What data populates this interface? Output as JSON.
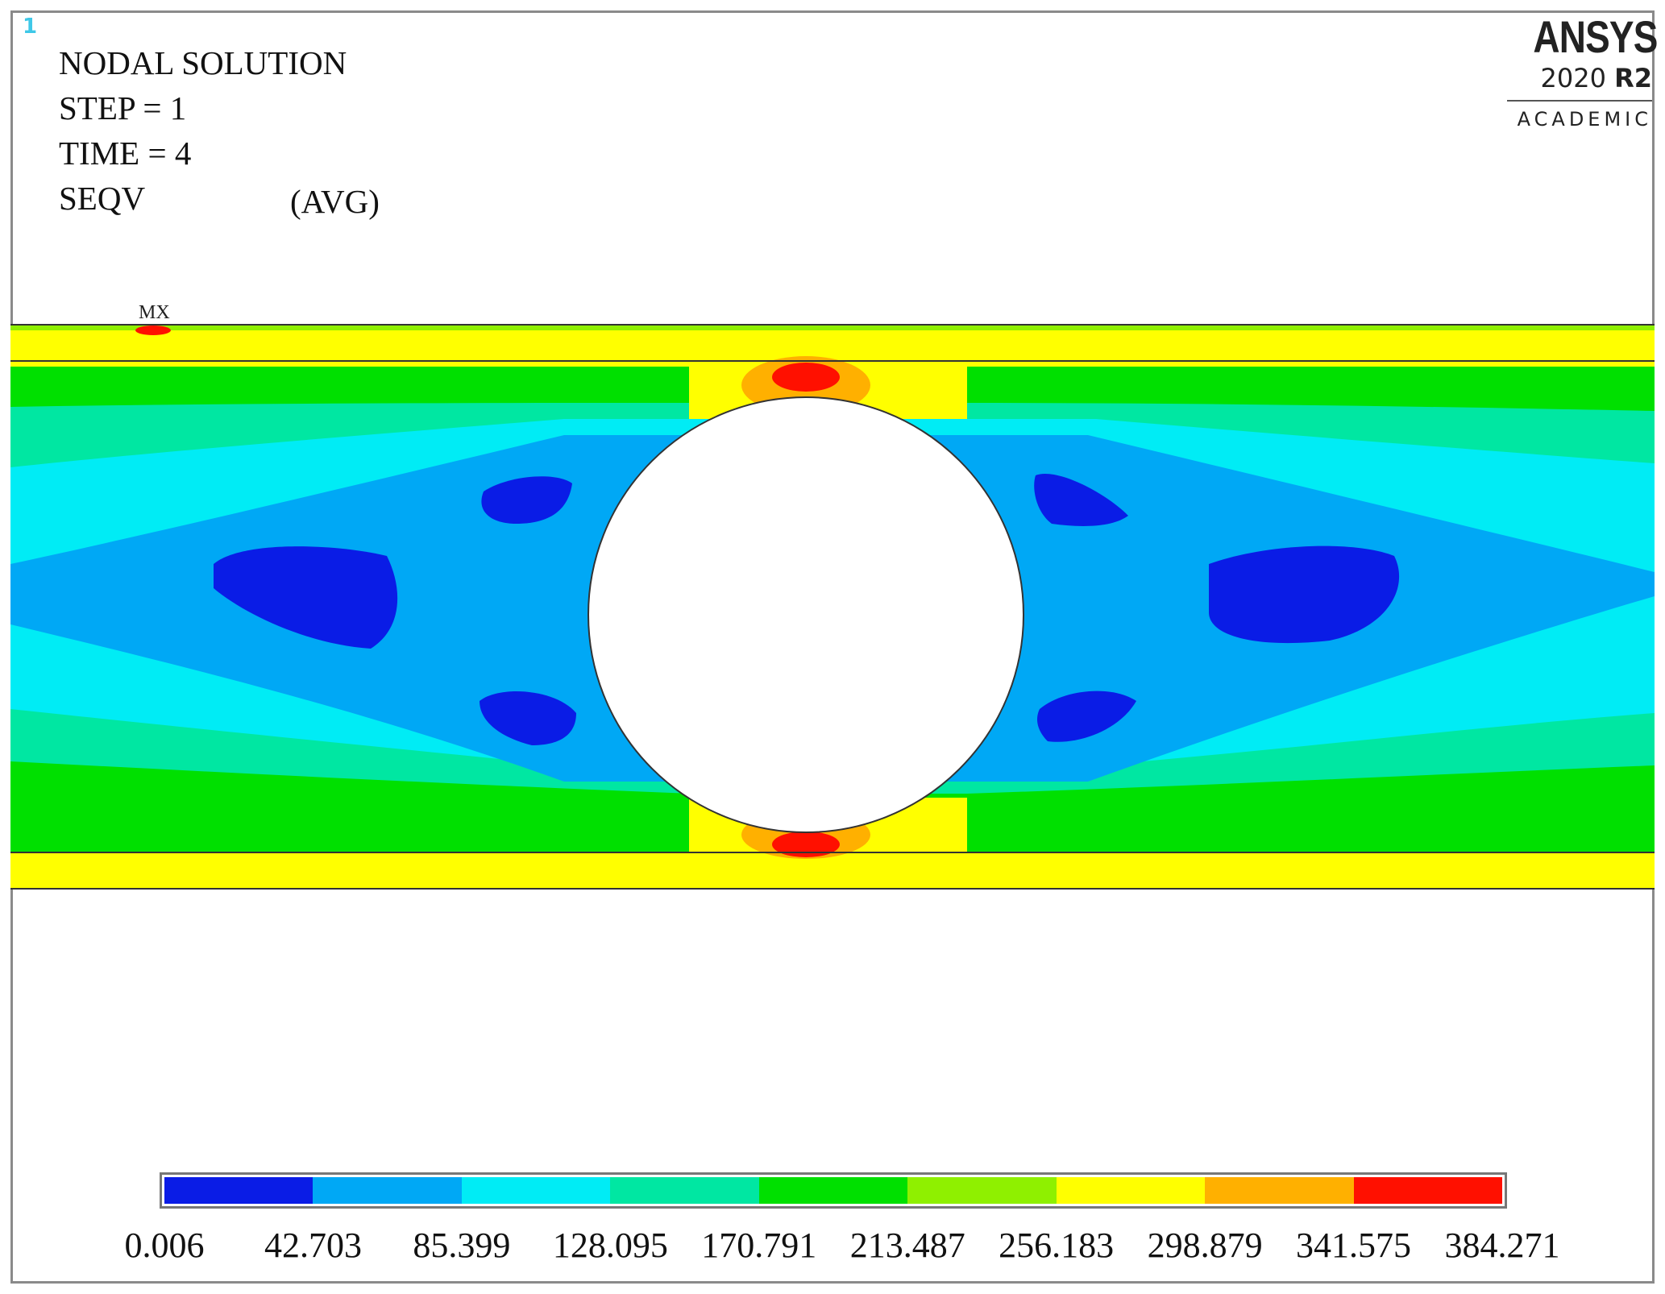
{
  "window": {
    "number": "1"
  },
  "annotation": {
    "title": "NODAL SOLUTION",
    "step": "STEP = 1",
    "time": "TIME = 4",
    "result": "SEQV",
    "averaging": "(AVG)",
    "max_marker": "MX"
  },
  "logo": {
    "name": "ANSYS",
    "version": "2020",
    "release": "R2",
    "edition": "ACADEMIC"
  },
  "legend": {
    "colors": [
      "#0a1ce6",
      "#00a8f5",
      "#00ecf5",
      "#00e7a2",
      "#00e000",
      "#8ff000",
      "#ffff00",
      "#ffb000",
      "#ff1000"
    ],
    "ticks": [
      "0.006",
      "42.703",
      "85.399",
      "128.095",
      "170.791",
      "213.487",
      "256.183",
      "298.879",
      "341.575",
      "384.271"
    ]
  }
}
